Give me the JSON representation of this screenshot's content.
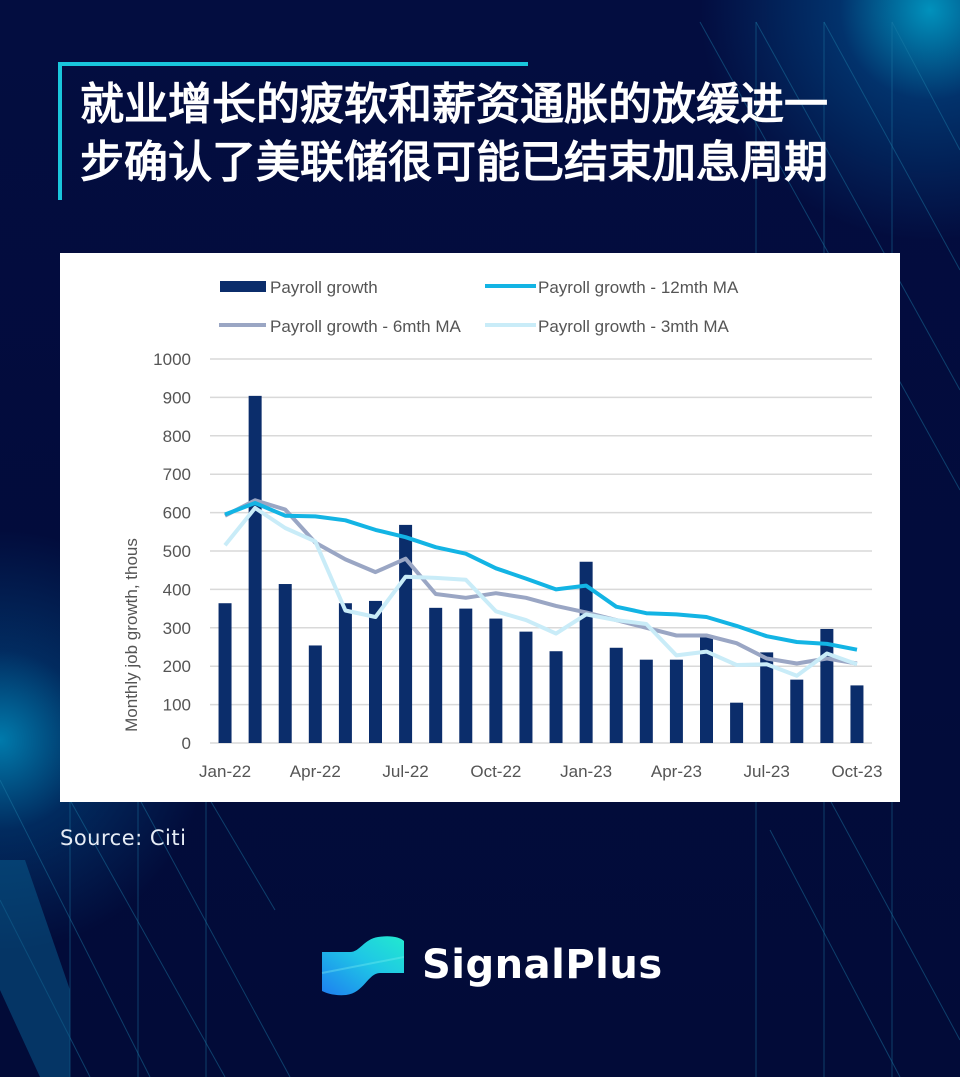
{
  "header": {
    "title_line1": "就业增长的疲软和薪资通胀的放缓进一",
    "title_line2": "步确认了美联储很可能已结束加息周期"
  },
  "source": "Source: Citi",
  "brand": {
    "name": "SignalPlus",
    "logo_icon": "signalplus-wave-logo"
  },
  "colors": {
    "background": "#020b3a",
    "accent": "#19c6dc",
    "bar": "#0b2d6b",
    "ma12": "#13b4e4",
    "ma6": "#9aa6c4",
    "ma3": "#c9ecf8"
  },
  "chart_data": {
    "type": "bar",
    "title": "",
    "xlabel": "",
    "ylabel": "Monthly job growth, thous",
    "ylim": [
      0,
      1000
    ],
    "yticks": [
      0,
      100,
      200,
      300,
      400,
      500,
      600,
      700,
      800,
      900,
      1000
    ],
    "grid": true,
    "legend_position": "top",
    "x": [
      "Jan-22",
      "Feb-22",
      "Mar-22",
      "Apr-22",
      "May-22",
      "Jun-22",
      "Jul-22",
      "Aug-22",
      "Sep-22",
      "Oct-22",
      "Nov-22",
      "Dec-22",
      "Jan-23",
      "Feb-23",
      "Mar-23",
      "Apr-23",
      "May-23",
      "Jun-23",
      "Jul-23",
      "Aug-23",
      "Sep-23",
      "Oct-23"
    ],
    "xtick_labels": [
      "Jan-22",
      "Apr-22",
      "Jul-22",
      "Oct-22",
      "Jan-23",
      "Apr-23",
      "Jul-23",
      "Oct-23"
    ],
    "series": [
      {
        "name": "Payroll growth",
        "type": "bar",
        "values": [
          364,
          904,
          414,
          254,
          364,
          370,
          568,
          352,
          350,
          324,
          290,
          239,
          472,
          248,
          217,
          217,
          281,
          105,
          236,
          165,
          297,
          150
        ]
      },
      {
        "name": "Payroll growth - 12mth MA",
        "type": "line",
        "values": [
          595,
          625,
          592,
          590,
          580,
          555,
          536,
          510,
          493,
          455,
          428,
          400,
          410,
          355,
          338,
          335,
          328,
          305,
          278,
          263,
          258,
          243
        ]
      },
      {
        "name": "Payroll growth - 6mth MA",
        "type": "line",
        "values": [
          592,
          632,
          608,
          522,
          478,
          445,
          480,
          388,
          378,
          390,
          378,
          357,
          340,
          320,
          300,
          280,
          280,
          260,
          220,
          207,
          220,
          207
        ]
      },
      {
        "name": "Payroll growth - 3mth MA",
        "type": "line",
        "values": [
          515,
          612,
          560,
          525,
          345,
          328,
          433,
          430,
          425,
          343,
          320,
          285,
          335,
          320,
          310,
          228,
          238,
          203,
          205,
          175,
          233,
          205
        ]
      }
    ]
  }
}
